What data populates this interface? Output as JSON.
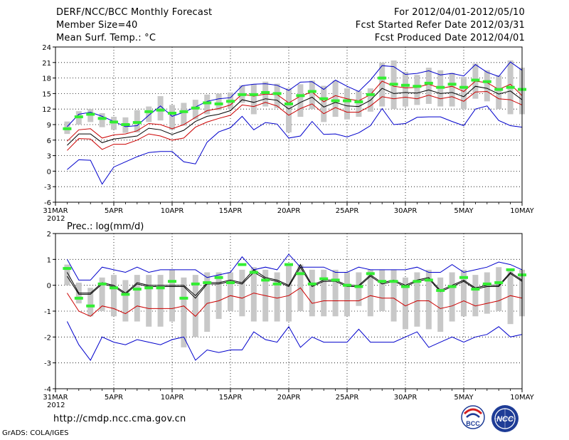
{
  "header": {
    "title": "DERF/NCC/BCC Monthly Forecast",
    "member_size": "Member Size=40",
    "forecast_period": "For 2012/04/01-2012/05/10",
    "start_refer": "Fcst Started Refer Date 2012/03/31",
    "produced": "Fcst Produced Date 2012/04/01"
  },
  "footer": {
    "url": "http://cmdp.ncc.cma.gov.cn",
    "credit": "GrADS: COLA/IGES",
    "logo_bcc": "BCC",
    "logo_ncc": "NCC"
  },
  "colors": {
    "bound": "#0000cc",
    "quartile": "#cc0000",
    "median": "#000000",
    "observed": "#33ee33",
    "spread": "#c8c8c8",
    "grid": "#000000"
  },
  "chart_data": [
    {
      "type": "line",
      "title": "Mean Surf. Temp.: °C",
      "ylim": [
        -6,
        24
      ],
      "yticks": [
        -6,
        -3,
        0,
        3,
        6,
        9,
        12,
        15,
        18,
        21,
        24
      ],
      "x_tick_labels": [
        "31MAR",
        "5APR",
        "10APR",
        "15APR",
        "20APR",
        "25APR",
        "30APR",
        "5MAY",
        "10MAY"
      ],
      "x_tick_positions": [
        0,
        5,
        10,
        15,
        20,
        25,
        30,
        35,
        40
      ],
      "x_year_label": "2012",
      "x": [
        1,
        2,
        3,
        4,
        5,
        6,
        7,
        8,
        9,
        10,
        11,
        12,
        13,
        14,
        15,
        16,
        17,
        18,
        19,
        20,
        21,
        22,
        23,
        24,
        25,
        26,
        27,
        28,
        29,
        30,
        31,
        32,
        33,
        34,
        35,
        36,
        37,
        38,
        39,
        40
      ],
      "series": [
        {
          "name": "Max",
          "color": "blue",
          "values": [
            8.6,
            11.0,
            11.4,
            10.6,
            9.6,
            8.6,
            8.8,
            10.8,
            12.6,
            10.6,
            11.4,
            12.4,
            13.5,
            14.0,
            14.2,
            16.5,
            16.8,
            16.9,
            16.6,
            15.6,
            17.2,
            17.3,
            15.8,
            17.6,
            16.4,
            15.4,
            17.6,
            20.4,
            20.2,
            18.7,
            18.9,
            19.4,
            18.6,
            18.9,
            18.4,
            20.6,
            19.1,
            18.3,
            21.1,
            19.5
          ]
        },
        {
          "name": "Upper quartile",
          "color": "red",
          "values": [
            5.8,
            8.0,
            8.2,
            6.4,
            7.0,
            7.2,
            7.8,
            9.2,
            9.0,
            8.2,
            9.0,
            10.4,
            11.7,
            12.1,
            12.8,
            14.9,
            14.5,
            14.9,
            14.8,
            13.2,
            14.5,
            15.3,
            13.4,
            14.6,
            14.0,
            13.6,
            14.8,
            17.4,
            16.4,
            16.1,
            16.2,
            16.8,
            16.0,
            16.4,
            15.4,
            17.4,
            17.1,
            15.8,
            16.8,
            14.6
          ]
        },
        {
          "name": "Median",
          "color": "black",
          "values": [
            5.0,
            7.2,
            7.2,
            5.5,
            6.2,
            6.5,
            6.8,
            8.3,
            8.0,
            7.1,
            7.9,
            9.6,
            10.6,
            11.0,
            11.7,
            13.8,
            13.3,
            14.0,
            13.7,
            12.0,
            13.3,
            14.3,
            12.4,
            13.3,
            12.6,
            12.5,
            13.7,
            16.0,
            15.0,
            15.2,
            15.1,
            15.7,
            15.0,
            15.2,
            14.4,
            16.4,
            16.0,
            14.9,
            15.5,
            13.8
          ]
        },
        {
          "name": "Lower quartile",
          "color": "red",
          "values": [
            4.0,
            6.3,
            6.2,
            4.2,
            5.2,
            5.2,
            6.0,
            7.2,
            6.8,
            6.0,
            6.4,
            8.5,
            9.5,
            10.2,
            10.8,
            12.8,
            12.5,
            13.3,
            12.6,
            10.8,
            12.1,
            13.0,
            11.1,
            12.3,
            11.4,
            11.4,
            12.6,
            14.4,
            14.0,
            14.3,
            14.0,
            14.7,
            14.0,
            14.4,
            13.5,
            15.3,
            15.4,
            14.0,
            13.8,
            12.8
          ]
        },
        {
          "name": "Min",
          "color": "blue",
          "values": [
            0.3,
            2.2,
            2.1,
            -2.5,
            0.8,
            1.8,
            2.8,
            3.6,
            3.8,
            3.8,
            1.8,
            1.4,
            5.6,
            7.6,
            8.4,
            10.6,
            8.0,
            9.4,
            9.1,
            6.4,
            6.8,
            9.6,
            7.1,
            7.2,
            6.6,
            7.4,
            8.8,
            12.1,
            9.0,
            9.2,
            10.4,
            10.5,
            10.5,
            9.6,
            8.8,
            12.0,
            12.6,
            9.8,
            8.8,
            8.5
          ]
        },
        {
          "name": "Observed",
          "color": "green",
          "values": [
            8.2,
            10.5,
            11.0,
            10.2,
            9.5,
            9.0,
            9.4,
            11.5,
            11.8,
            11.2,
            11.5,
            12.2,
            13.2,
            13.0,
            13.5,
            14.8,
            14.8,
            15.2,
            15.0,
            13.0,
            14.6,
            15.4,
            14.0,
            13.6,
            13.6,
            13.4,
            14.8,
            18.0,
            16.8,
            16.6,
            16.4,
            17.0,
            16.2,
            16.8,
            16.2,
            17.6,
            17.3,
            15.8,
            16.2,
            15.8
          ]
        },
        {
          "name": "Spread low",
          "color": "gray",
          "values": [
            7.2,
            9.0,
            9.5,
            8.5,
            8.0,
            7.4,
            7.5,
            9.5,
            9.8,
            8.0,
            8.8,
            10.0,
            11.0,
            11.8,
            12.0,
            13.2,
            11.0,
            12.5,
            12.2,
            7.5,
            10.5,
            12.0,
            9.5,
            10.5,
            10.0,
            10.5,
            11.5,
            12.5,
            12.0,
            12.5,
            12.8,
            13.0,
            12.5,
            12.5,
            12.0,
            14.0,
            13.5,
            12.0,
            11.0,
            11.0
          ]
        },
        {
          "name": "Spread high",
          "color": "gray",
          "values": [
            9.6,
            11.6,
            12.0,
            11.2,
            10.5,
            10.4,
            11.8,
            12.5,
            14.5,
            12.8,
            13.2,
            13.8,
            14.8,
            15.0,
            15.2,
            16.6,
            16.8,
            17.3,
            16.9,
            16.0,
            16.8,
            17.5,
            16.5,
            17.5,
            16.0,
            15.5,
            16.0,
            21.0,
            21.4,
            19.2,
            18.6,
            20.0,
            19.5,
            19.0,
            18.2,
            20.8,
            19.5,
            18.5,
            21.4,
            20.0
          ]
        }
      ]
    },
    {
      "type": "line",
      "title": "Prec.: log(mm/d)",
      "ylim": [
        -4,
        2
      ],
      "yticks": [
        -4,
        -3,
        -2,
        -1,
        0,
        1,
        2
      ],
      "x_tick_labels": [
        "31MAR",
        "5APR",
        "10APR",
        "15APR",
        "20APR",
        "25APR",
        "30APR",
        "5MAY",
        "10MAY"
      ],
      "x_tick_positions": [
        0,
        5,
        10,
        15,
        20,
        25,
        30,
        35,
        40
      ],
      "x_year_label": "2012",
      "x": [
        1,
        2,
        3,
        4,
        5,
        6,
        7,
        8,
        9,
        10,
        11,
        12,
        13,
        14,
        15,
        16,
        17,
        18,
        19,
        20,
        21,
        22,
        23,
        24,
        25,
        26,
        27,
        28,
        29,
        30,
        31,
        32,
        33,
        34,
        35,
        36,
        37,
        38,
        39,
        40
      ],
      "series": [
        {
          "name": "Max",
          "color": "blue",
          "values": [
            1.0,
            0.2,
            0.2,
            0.7,
            0.6,
            0.5,
            0.7,
            0.5,
            0.6,
            0.6,
            0.6,
            0.6,
            0.3,
            0.4,
            0.5,
            1.1,
            0.6,
            0.7,
            0.6,
            1.2,
            0.7,
            0.7,
            0.7,
            0.5,
            0.5,
            0.7,
            0.6,
            0.6,
            0.6,
            0.6,
            0.7,
            0.5,
            0.5,
            0.8,
            0.5,
            0.6,
            0.7,
            0.9,
            0.8,
            0.6
          ]
        },
        {
          "name": "Upper quartile",
          "color": "black",
          "values": [
            0.5,
            -0.3,
            -0.3,
            0.1,
            0.0,
            -0.3,
            0.1,
            0.0,
            0.0,
            0.0,
            0.0,
            -0.4,
            0.1,
            0.1,
            0.2,
            0.1,
            0.6,
            0.3,
            0.2,
            0.0,
            0.8,
            0.0,
            0.2,
            0.2,
            0.0,
            0.0,
            0.4,
            0.1,
            0.2,
            0.0,
            0.2,
            0.3,
            -0.2,
            0.0,
            0.2,
            -0.1,
            0.0,
            0.0,
            0.5,
            0.2
          ]
        },
        {
          "name": "Median",
          "color": "black",
          "values": [
            0.35,
            -0.35,
            -0.35,
            0.05,
            -0.05,
            -0.35,
            0.05,
            -0.05,
            -0.05,
            -0.05,
            -0.05,
            -0.5,
            0.05,
            0.05,
            0.15,
            0.05,
            0.5,
            0.25,
            0.15,
            -0.05,
            0.7,
            -0.05,
            0.15,
            0.15,
            -0.05,
            -0.05,
            0.35,
            0.05,
            0.15,
            -0.05,
            0.15,
            0.25,
            -0.25,
            -0.05,
            0.15,
            -0.15,
            -0.05,
            -0.05,
            0.45,
            0.15
          ]
        },
        {
          "name": "Lower quartile",
          "color": "red",
          "values": [
            -0.3,
            -1.0,
            -1.2,
            -0.8,
            -0.9,
            -1.1,
            -0.8,
            -0.9,
            -0.9,
            -0.9,
            -0.8,
            -1.2,
            -0.7,
            -0.6,
            -0.4,
            -0.5,
            -0.3,
            -0.4,
            -0.5,
            -0.4,
            -0.1,
            -0.7,
            -0.6,
            -0.6,
            -0.6,
            -0.6,
            -0.4,
            -0.5,
            -0.5,
            -0.8,
            -0.6,
            -0.6,
            -0.9,
            -0.8,
            -0.6,
            -0.8,
            -0.7,
            -0.6,
            -0.4,
            -0.5
          ]
        },
        {
          "name": "Min",
          "color": "blue",
          "values": [
            -1.4,
            -2.3,
            -2.9,
            -2.0,
            -2.2,
            -2.3,
            -2.1,
            -2.2,
            -2.3,
            -2.1,
            -2.0,
            -2.9,
            -2.5,
            -2.6,
            -2.5,
            -2.5,
            -1.8,
            -2.1,
            -2.2,
            -1.6,
            -2.4,
            -2.0,
            -2.2,
            -2.2,
            -2.2,
            -1.7,
            -2.2,
            -2.2,
            -2.2,
            -2.0,
            -1.8,
            -2.4,
            -2.2,
            -2.0,
            -2.2,
            -2.0,
            -1.9,
            -1.6,
            -2.0,
            -1.9
          ]
        },
        {
          "name": "Observed",
          "color": "green",
          "values": [
            0.65,
            -0.5,
            -0.8,
            0.05,
            -0.1,
            -0.35,
            -0.15,
            -0.1,
            -0.1,
            0.15,
            -0.5,
            0.05,
            0.1,
            0.3,
            0.1,
            0.8,
            0.5,
            0.2,
            0.05,
            0.8,
            0.45,
            0.05,
            0.25,
            0.2,
            0.0,
            -0.05,
            0.45,
            0.15,
            0.15,
            -0.05,
            0.15,
            0.2,
            -0.2,
            -0.05,
            0.3,
            -0.15,
            0.05,
            0.1,
            0.6,
            0.4
          ]
        },
        {
          "name": "Spread low",
          "color": "gray",
          "values": [
            0.0,
            -0.7,
            -1.2,
            -1.0,
            -1.2,
            -1.4,
            -1.4,
            -1.6,
            -1.6,
            -1.4,
            -2.4,
            -2.0,
            -1.8,
            -1.3,
            -1.0,
            -1.2,
            -1.4,
            -1.4,
            -1.4,
            -1.4,
            -1.0,
            -1.2,
            -1.2,
            -1.2,
            -1.2,
            -0.8,
            -1.2,
            -1.0,
            -1.4,
            -1.7,
            -1.6,
            -1.7,
            -1.8,
            -1.4,
            -1.2,
            -1.2,
            -1.1,
            -1.0,
            -1.5,
            -1.2
          ]
        },
        {
          "name": "Spread high",
          "color": "gray",
          "values": [
            0.8,
            0.1,
            -0.1,
            0.3,
            0.4,
            0.2,
            0.4,
            0.4,
            0.4,
            0.6,
            0.3,
            0.4,
            0.5,
            0.5,
            0.5,
            0.6,
            0.7,
            0.6,
            0.5,
            0.8,
            0.8,
            0.6,
            0.6,
            0.6,
            0.5,
            0.5,
            0.6,
            0.6,
            0.6,
            0.3,
            0.5,
            0.6,
            0.3,
            0.5,
            0.6,
            0.4,
            0.5,
            0.7,
            0.6,
            0.6
          ]
        }
      ]
    }
  ]
}
